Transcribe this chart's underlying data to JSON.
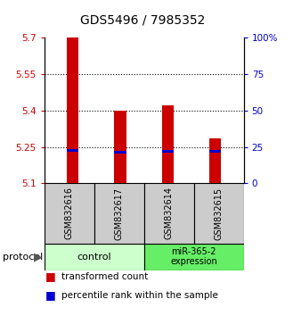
{
  "title": "GDS5496 / 7985352",
  "samples": [
    "GSM832616",
    "GSM832617",
    "GSM832614",
    "GSM832615"
  ],
  "red_values": [
    5.7,
    5.4,
    5.42,
    5.285
  ],
  "blue_values": [
    5.236,
    5.228,
    5.232,
    5.232
  ],
  "y_min": 5.1,
  "y_max": 5.7,
  "y_ticks_left": [
    5.1,
    5.25,
    5.4,
    5.55,
    5.7
  ],
  "y_ticks_right": [
    0,
    25,
    50,
    75,
    100
  ],
  "bar_color": "#cc0000",
  "blue_color": "#0000cc",
  "bar_width": 0.25,
  "tick_label_color_left": "#cc0000",
  "tick_label_color_right": "#0000cc",
  "title_fontsize": 10,
  "axis_fontsize": 7.5,
  "legend_fontsize": 7.5,
  "sample_label_fontsize": 7,
  "group_label_fontsize": 8,
  "protocol_fontsize": 8,
  "ctrl_color": "#ccffcc",
  "mir_color": "#66ee66",
  "gray_color": "#cccccc",
  "dotted_ticks": [
    5.25,
    5.4,
    5.55
  ]
}
